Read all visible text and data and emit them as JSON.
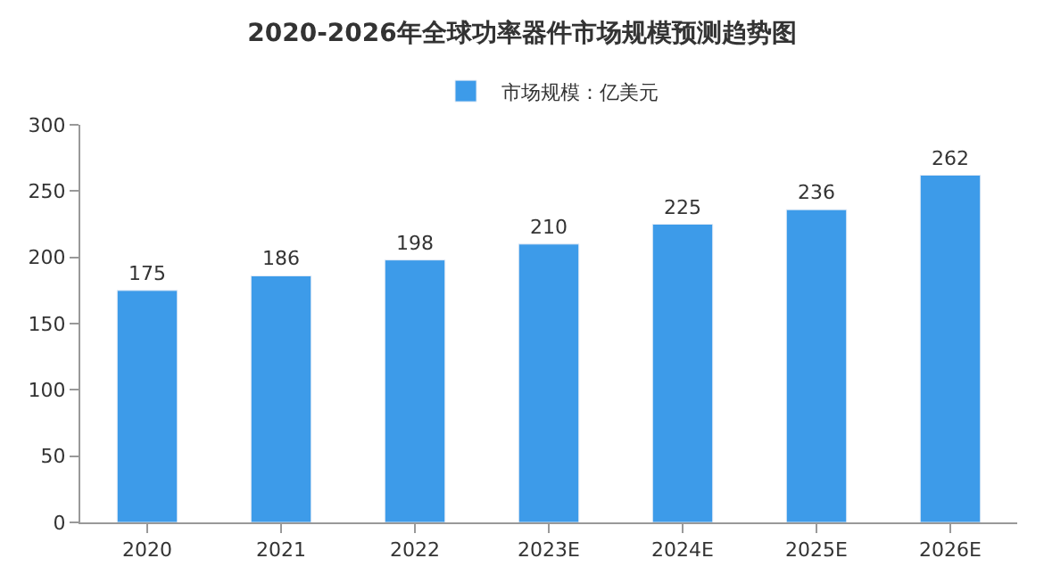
{
  "chart_data": {
    "type": "bar",
    "title": "2020-2026年全球功率器件市场规模预测趋势图",
    "categories": [
      "2020",
      "2021",
      "2022",
      "2023E",
      "2024E",
      "2025E",
      "2026E"
    ],
    "series": [
      {
        "name": "市场规模：亿美元",
        "color": "#3d9be9",
        "values": [
          175,
          186,
          198,
          210,
          225,
          236,
          262
        ]
      }
    ],
    "ylim": [
      0,
      300
    ],
    "yticks": [
      0,
      50,
      100,
      150,
      200,
      250,
      300
    ],
    "legend": "top",
    "data_labels": true
  }
}
